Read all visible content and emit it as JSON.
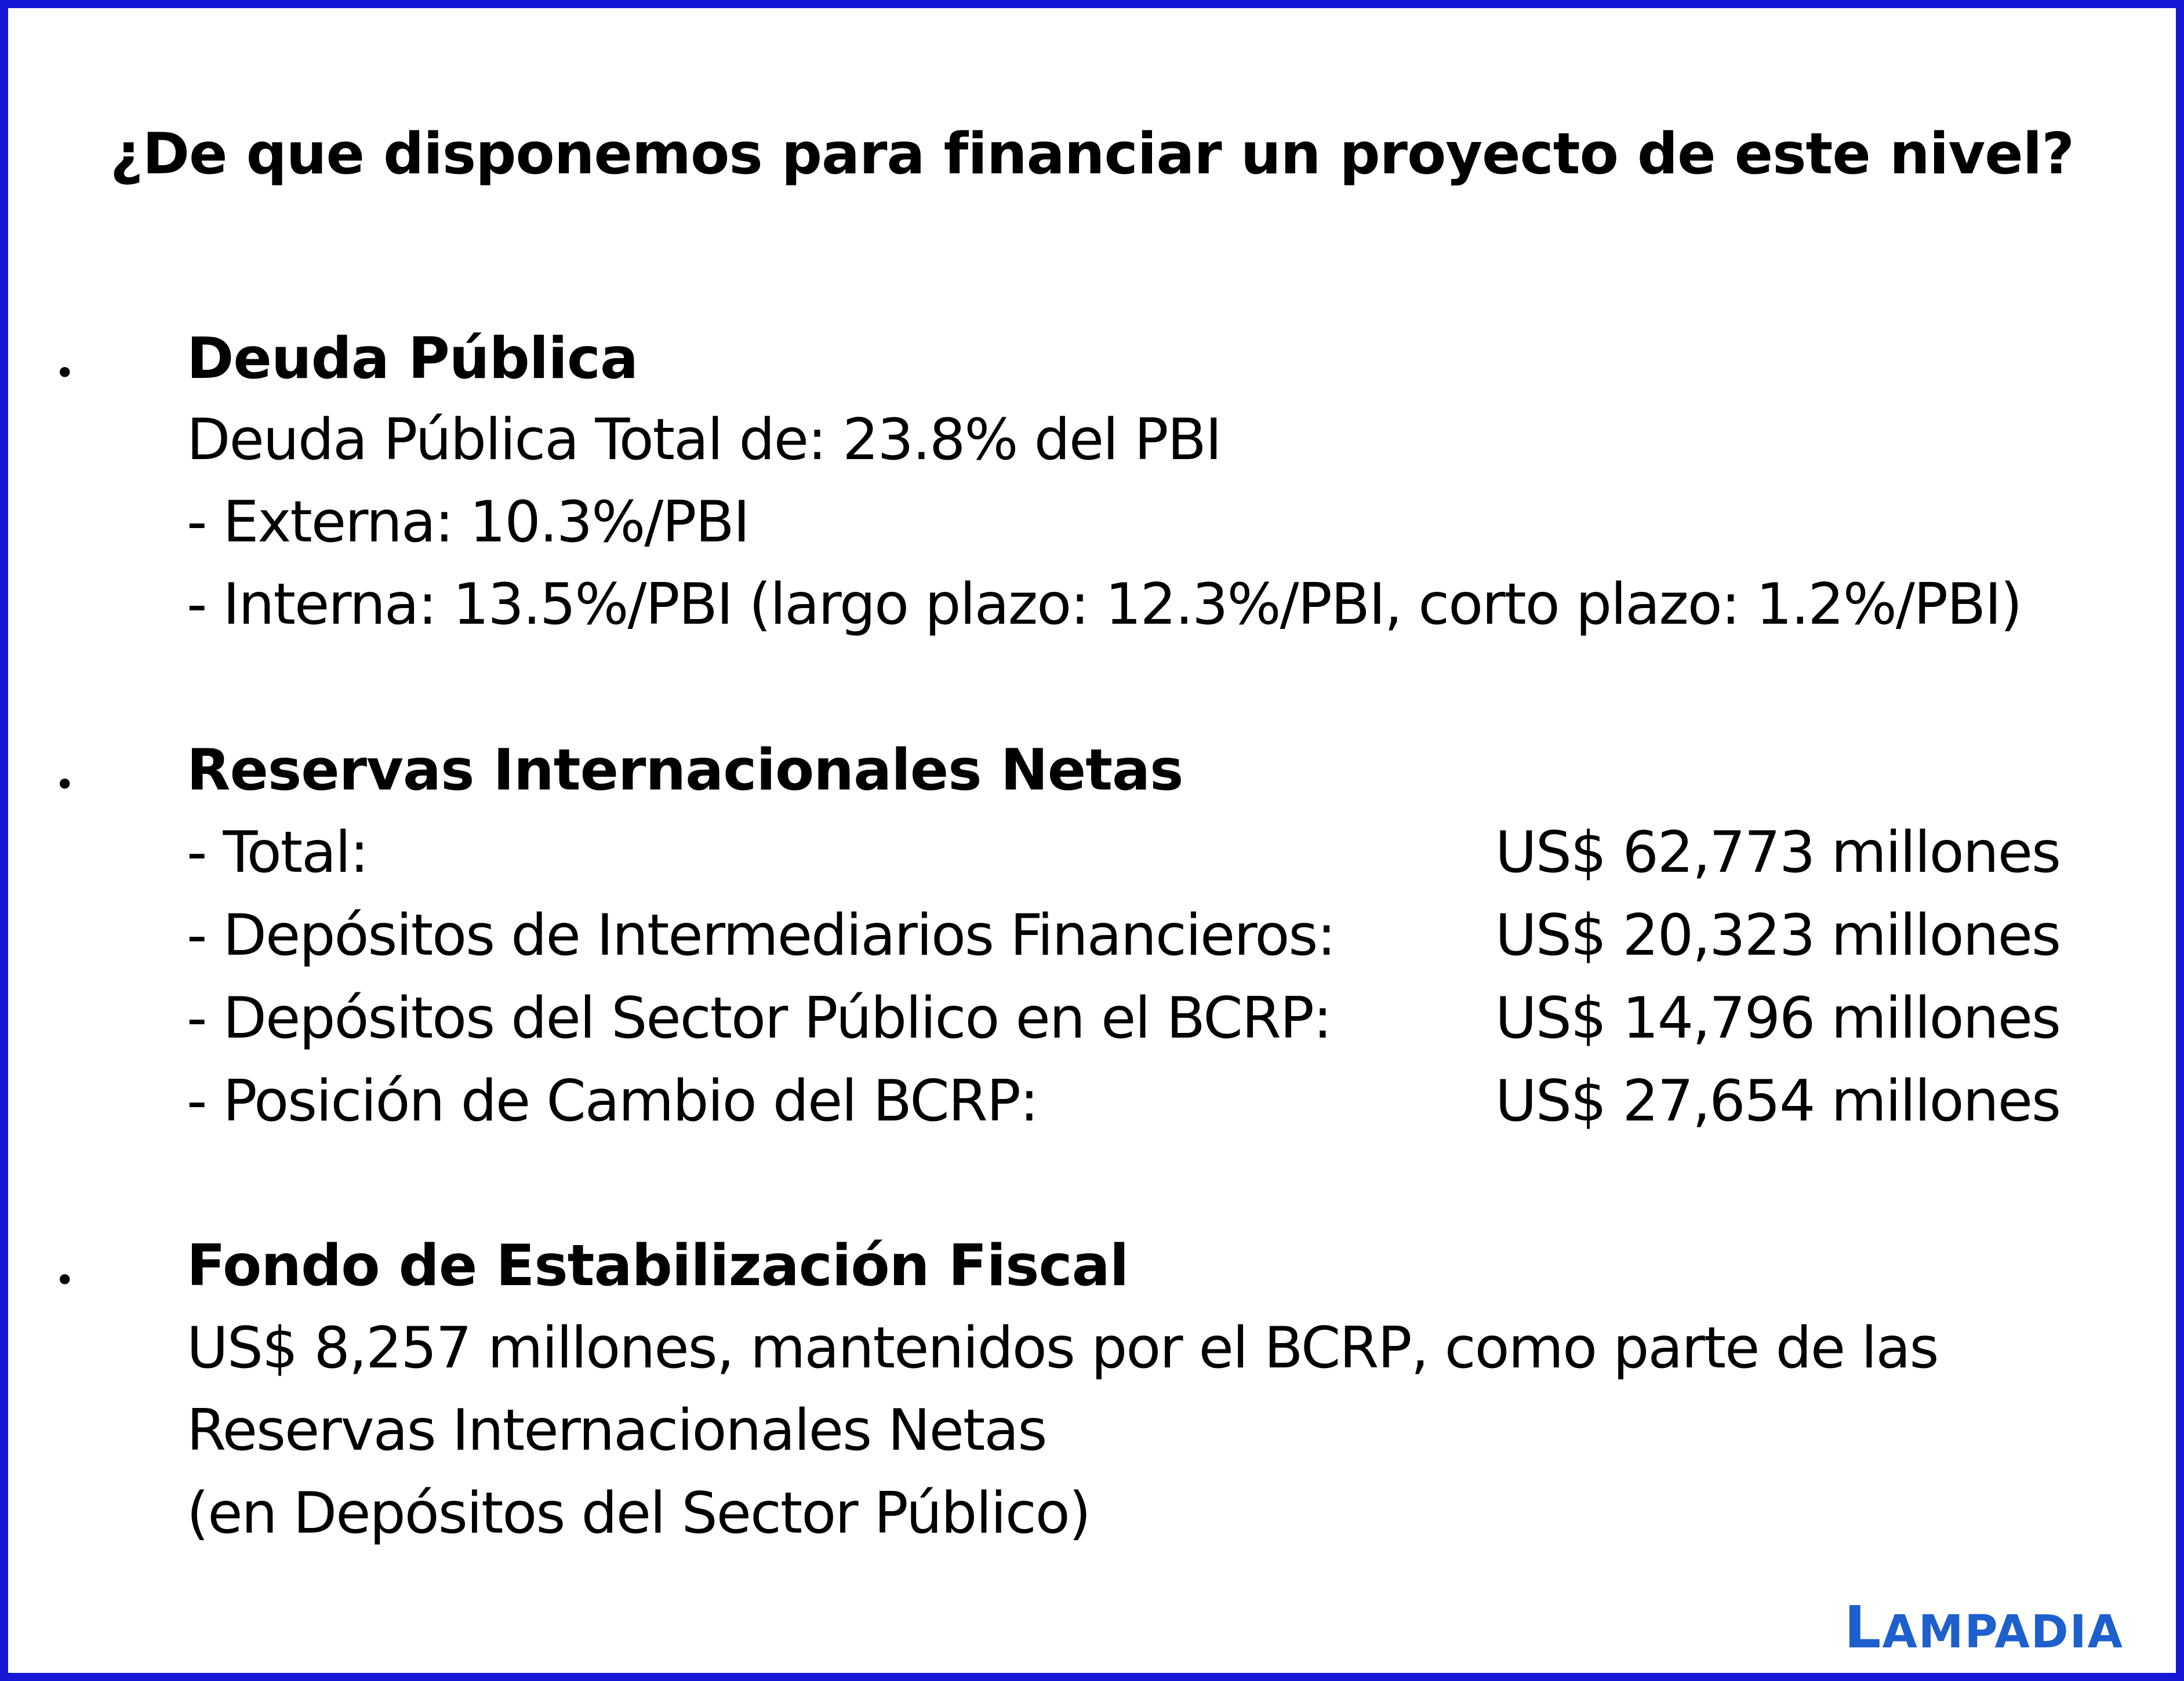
{
  "title": "¿De que disponemos para financiar un proyecto de este nivel?",
  "bullet_char": "•",
  "section_deuda": {
    "heading": "Deuda Pública",
    "lines": [
      "Deuda Pública Total de: 23.8% del PBI",
      "- Externa: 10.3%/PBI",
      "- Interna: 13.5%/PBI (largo plazo: 12.3%/PBI, corto plazo: 1.2%/PBI)"
    ]
  },
  "section_reservas": {
    "heading": "Reservas Internacionales Netas",
    "rows": [
      {
        "label": "- Total:",
        "value": "US$ 62,773 millones"
      },
      {
        "label": "- Depósitos de Intermediarios Financieros:",
        "value": "US$ 20,323 millones"
      },
      {
        "label": "- Depósitos del Sector Público en el BCRP:",
        "value": "US$ 14,796 millones"
      },
      {
        "label": "- Posición de Cambio del BCRP:",
        "value": "US$ 27,654 millones"
      }
    ]
  },
  "section_fondo": {
    "heading": "Fondo de Estabilización Fiscal",
    "lines": [
      "US$ 8,257 millones, mantenidos por el BCRP, como parte de las",
      "Reservas Internacionales Netas",
      "(en Depósitos del Sector Público)"
    ]
  },
  "logo": {
    "first_letter": "L",
    "rest": "AMPADIA",
    "color": "#1d5fcc"
  },
  "colors": {
    "border": "#1717d6",
    "background": "#ffffff",
    "text": "#000000"
  }
}
